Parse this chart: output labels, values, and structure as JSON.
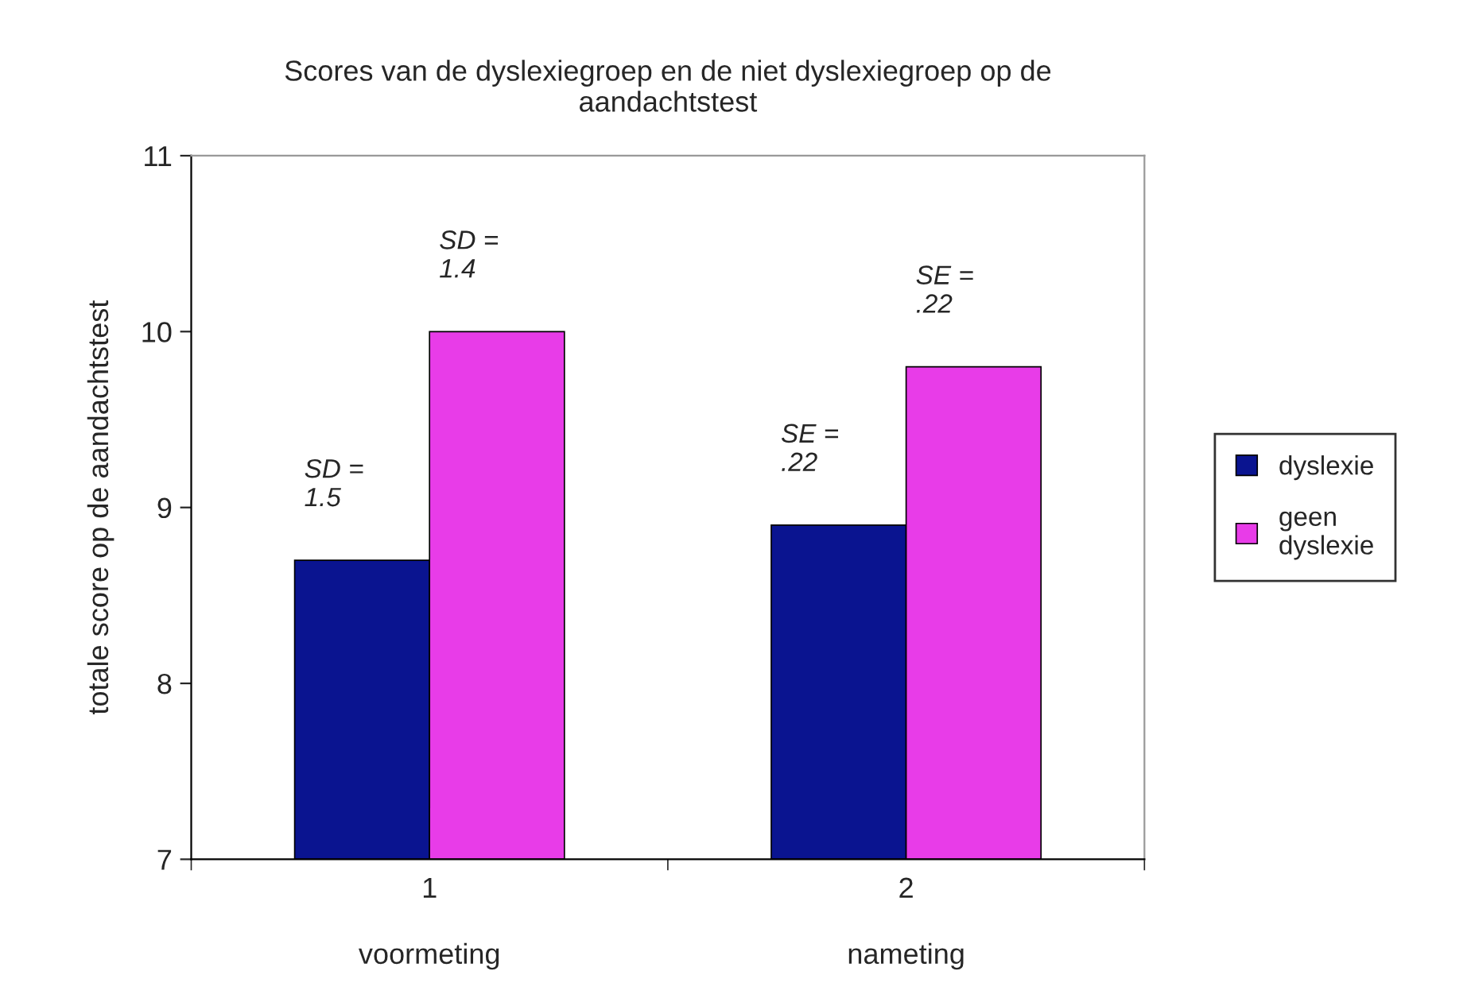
{
  "chart_data": {
    "type": "bar",
    "title": "Scores van de dyslexiegroep en de niet dyslexiegroep op de\naandachtstest",
    "ylabel": "totale score op de aandachtstest",
    "categories": [
      "1\n\nvoormeting",
      "2\n\nnameting"
    ],
    "series": [
      {
        "name": "dyslexie",
        "color": "#0a1490",
        "values": [
          8.7,
          8.9
        ]
      },
      {
        "name": "geen\ndyslexie",
        "color": "#e83ce8",
        "values": [
          10.0,
          9.8
        ]
      }
    ],
    "ylim": [
      7,
      11
    ],
    "yticks": [
      7,
      8,
      9,
      10,
      11
    ],
    "grid": false,
    "legend": "right",
    "annotations": [
      "SD =\n1.5",
      "SD =\n1.4",
      "SE =\n.22",
      "SE =\n.22"
    ]
  }
}
